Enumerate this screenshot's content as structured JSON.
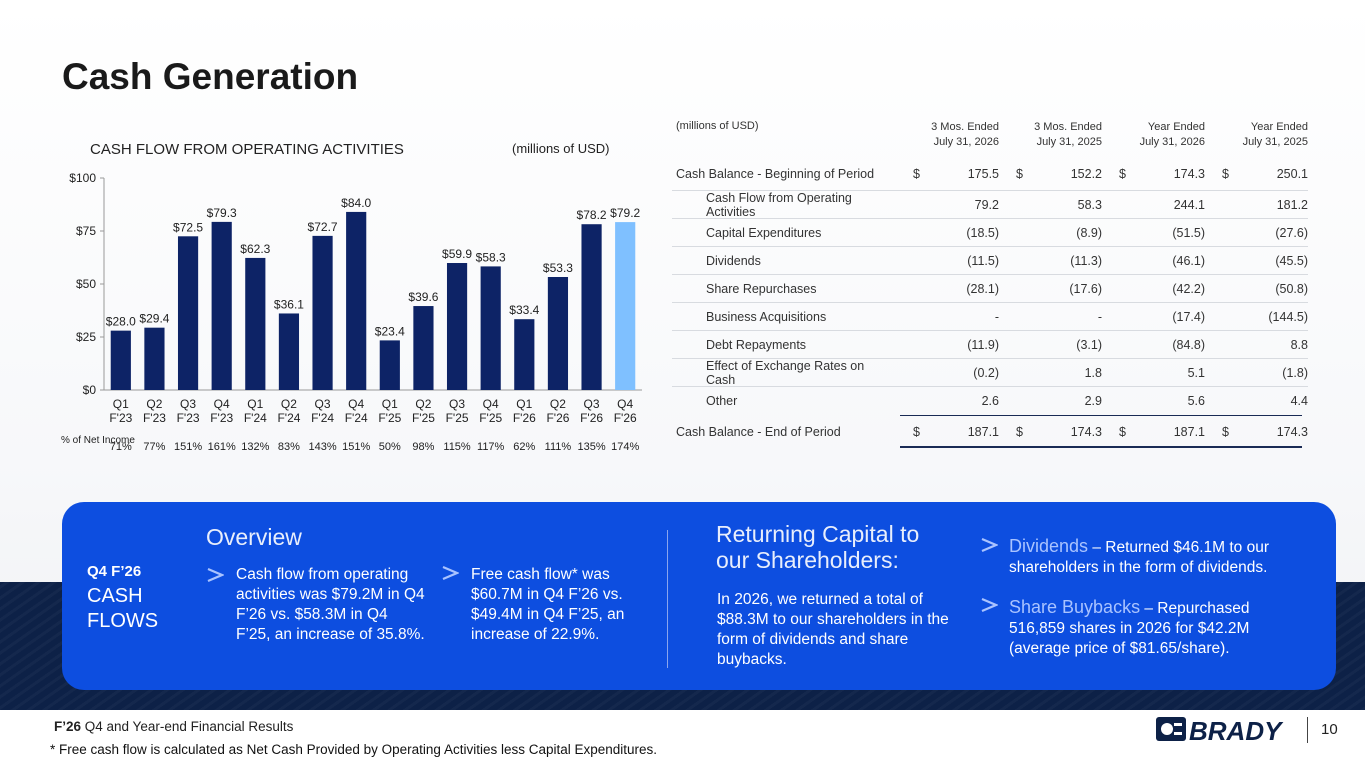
{
  "title": "Cash Generation",
  "chart_data": {
    "type": "bar",
    "title": "CASH FLOW FROM OPERATING ACTIVITIES",
    "units": "(millions of USD)",
    "categories": [
      [
        "Q1",
        "F'23"
      ],
      [
        "Q2",
        "F'23"
      ],
      [
        "Q3",
        "F'23"
      ],
      [
        "Q4",
        "F'23"
      ],
      [
        "Q1",
        "F'24"
      ],
      [
        "Q2",
        "F'24"
      ],
      [
        "Q3",
        "F'24"
      ],
      [
        "Q4",
        "F'24"
      ],
      [
        "Q1",
        "F'25"
      ],
      [
        "Q2",
        "F'25"
      ],
      [
        "Q3",
        "F'25"
      ],
      [
        "Q4",
        "F'25"
      ],
      [
        "Q1",
        "F'26"
      ],
      [
        "Q2",
        "F'26"
      ],
      [
        "Q3",
        "F'26"
      ],
      [
        "Q4",
        "F'26"
      ]
    ],
    "values": [
      28.0,
      29.4,
      72.5,
      79.3,
      62.3,
      36.1,
      72.7,
      84.0,
      23.4,
      39.6,
      59.9,
      58.3,
      33.4,
      53.3,
      78.2,
      79.2
    ],
    "value_labels": [
      "$28.0",
      "$29.4",
      "$72.5",
      "$79.3",
      "$62.3",
      "$36.1",
      "$72.7",
      "$84.0",
      "$23.4",
      "$39.6",
      "$59.9",
      "$58.3",
      "$33.4",
      "$53.3",
      "$78.2",
      "$79.2"
    ],
    "ylim": [
      0,
      100
    ],
    "yticks": [
      0,
      25,
      50,
      75,
      100
    ],
    "ytick_labels": [
      "$0",
      "$25",
      "$50",
      "$75",
      "$100"
    ],
    "grid": false,
    "colors": {
      "bar": "#0d2366",
      "highlight_bar": "#7fc0ff"
    },
    "highlight_index": 15,
    "pct_label": "% of Net Income",
    "pct_net_income": [
      "71%",
      "77%",
      "151%",
      "161%",
      "132%",
      "83%",
      "143%",
      "151%",
      "50%",
      "98%",
      "115%",
      "117%",
      "62%",
      "111%",
      "135%",
      "174%"
    ]
  },
  "table": {
    "units": "(millions of USD)",
    "headers": [
      [
        "3 Mos. Ended",
        "July 31, 2026"
      ],
      [
        "3 Mos. Ended",
        "July 31, 2025"
      ],
      [
        "Year Ended",
        "July 31, 2026"
      ],
      [
        "Year Ended",
        "July 31, 2025"
      ]
    ],
    "begin": {
      "label": "Cash Balance - Beginning of Period",
      "values": [
        "175.5",
        "152.2",
        "174.3",
        "250.1"
      ]
    },
    "rows": [
      {
        "label": "Cash Flow from Operating Activities",
        "values": [
          "79.2",
          "58.3",
          "244.1",
          "181.2"
        ]
      },
      {
        "label": "Capital Expenditures",
        "values": [
          "(18.5)",
          "(8.9)",
          "(51.5)",
          "(27.6)"
        ]
      },
      {
        "label": "Dividends",
        "values": [
          "(11.5)",
          "(11.3)",
          "(46.1)",
          "(45.5)"
        ]
      },
      {
        "label": "Share Repurchases",
        "values": [
          "(28.1)",
          "(17.6)",
          "(42.2)",
          "(50.8)"
        ]
      },
      {
        "label": "Business Acquisitions",
        "values": [
          "-",
          "-",
          "(17.4)",
          "(144.5)"
        ]
      },
      {
        "label": "Debt Repayments",
        "values": [
          "(11.9)",
          "(3.1)",
          "(84.8)",
          "8.8"
        ]
      },
      {
        "label": "Effect of Exchange Rates on Cash",
        "values": [
          "(0.2)",
          "1.8",
          "5.1",
          "(1.8)"
        ]
      },
      {
        "label": "Other",
        "values": [
          "2.6",
          "2.9",
          "5.6",
          "4.4"
        ]
      }
    ],
    "end": {
      "label": "Cash Balance - End of Period",
      "values": [
        "187.1",
        "174.3",
        "187.1",
        "174.3"
      ]
    },
    "currency": "$"
  },
  "panel": {
    "q_label": "Q4 F’26",
    "q_big": "CASH FLOWS",
    "overview_heading": "Overview",
    "bullet1": "Cash flow from operating activities was $79.2M in Q4 F’26 vs. $58.3M in Q4 F’25, an increase of 35.8%.",
    "bullet2": "Free cash flow* was $60.7M in Q4 F’26 vs. $49.4M in Q4 F’25, an increase of 22.9%.",
    "returning_heading": "Returning Capital to our Shareholders:",
    "returning_text": "In 2026, we returned a total of $88.3M to our shareholders in the form of dividends and share buybacks.",
    "dividends_title": "Dividends",
    "dividends_text": " – Returned $46.1M to our shareholders in the form of dividends.",
    "buybacks_title": "Share Buybacks",
    "buybacks_text": " – Repurchased 516,859 shares in 2026 for $42.2M (average price of $81.65/share)."
  },
  "footer": {
    "bold": "F’26",
    "text": " Q4 and Year-end Financial Results",
    "footnote": "* Free cash flow is calculated as Net Cash Provided by Operating Activities less Capital Expenditures.",
    "logo": "BRADY",
    "page": "10"
  }
}
